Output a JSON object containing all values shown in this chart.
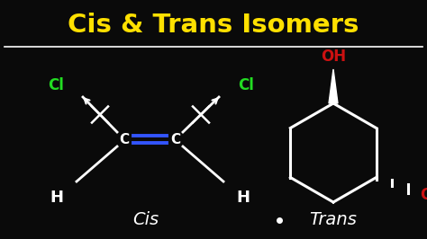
{
  "title": "Cis & Trans Isomers",
  "title_color": "#FFE000",
  "bg_color": "#0a0a0a",
  "line_color": "#FFFFFF",
  "cl_color": "#22DD22",
  "oh_color": "#CC1111",
  "double_bond_color": "#3355FF",
  "cis_label": "Cis",
  "trans_label": "Trans",
  "figsize": [
    4.74,
    2.66
  ],
  "dpi": 100
}
